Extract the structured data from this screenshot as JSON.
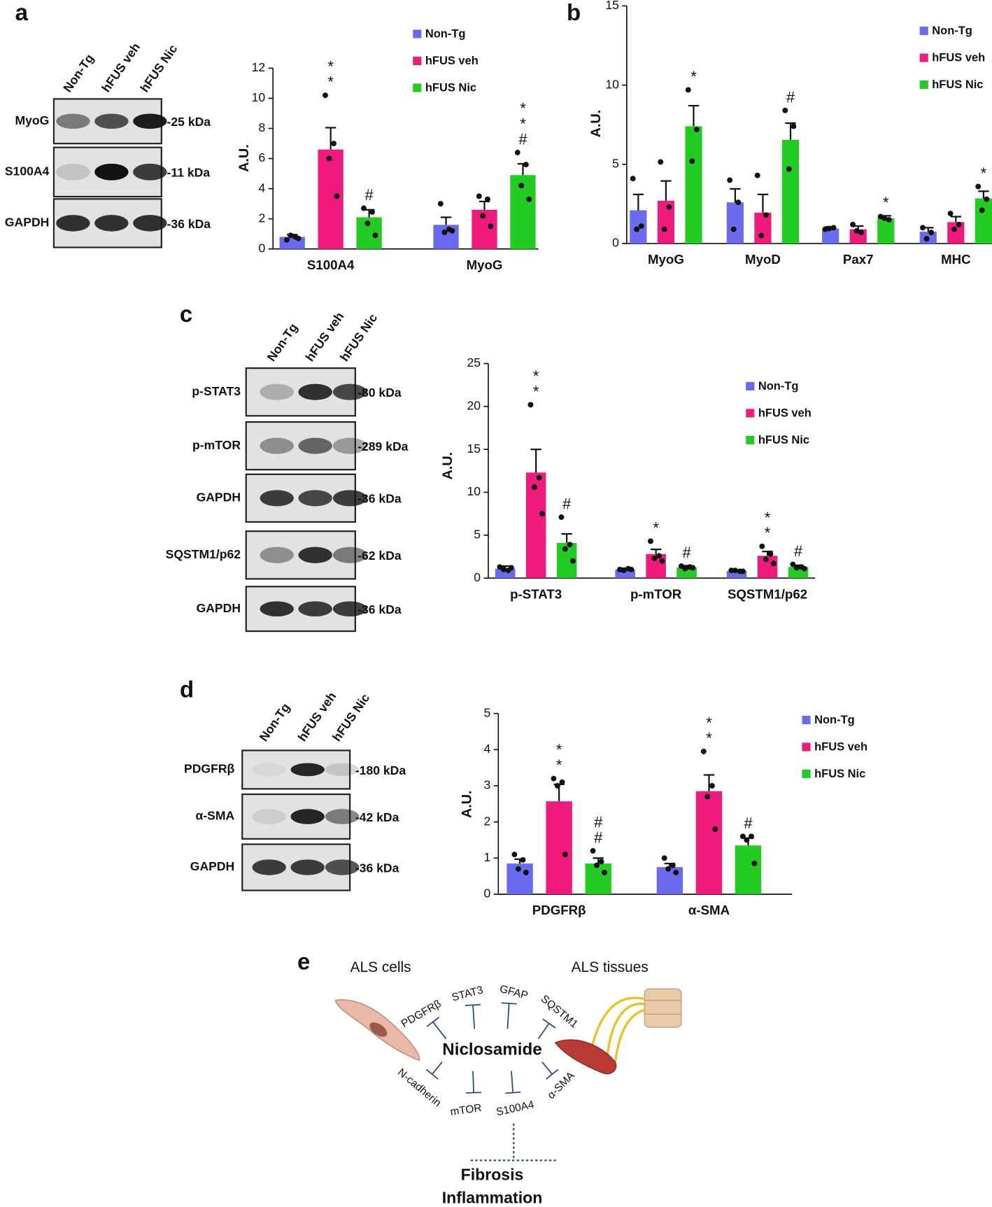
{
  "panels": [
    "a",
    "b",
    "c",
    "d",
    "e"
  ],
  "blots": [
    {
      "lanes": [
        "Non-Tg",
        "hFUS veh",
        "hFUS Nic"
      ],
      "rows": [
        {
          "label": "MyoG",
          "size": "-25 kDa"
        },
        {
          "label": "S100A4",
          "size": "-11 kDa"
        },
        {
          "label": "GAPDH",
          "size": "-36 kDa"
        }
      ]
    },
    {
      "lanes": [
        "Non-Tg",
        "hFUS veh",
        "hFUS Nic"
      ],
      "rows": [
        {
          "label": "p-STAT3",
          "size": "-80 kDa"
        },
        {
          "label": "p-mTOR",
          "size": "-289 kDa"
        },
        {
          "label": "GAPDH",
          "size": "-36 kDa"
        },
        {
          "label": "SQSTM1/p62",
          "size": "-62 kDa"
        },
        {
          "label": "GAPDH",
          "size": "-36 kDa"
        }
      ]
    },
    {
      "lanes": [
        "Non-Tg",
        "hFUS veh",
        "hFUS Nic"
      ],
      "rows": [
        {
          "label": "PDGFRβ",
          "size": "-180 kDa"
        },
        {
          "label": "α-SMA",
          "size": "-42 kDa"
        },
        {
          "label": "GAPDH",
          "size": "-36 kDa"
        }
      ]
    }
  ],
  "chart_data": [
    {
      "type": "bar",
      "y_label": "A.U.",
      "categories": [
        "S100A4",
        "MyoG"
      ],
      "ylim": [
        0,
        12
      ],
      "yticks": [
        0,
        2,
        4,
        6,
        8,
        10,
        12
      ],
      "legend": "upper right",
      "series": [
        {
          "name": "Non-Tg",
          "color": "#6a6aee",
          "values": [
            0.8,
            1.6
          ],
          "errors": [
            0.15,
            0.5
          ],
          "points": [
            [
              0.6,
              0.8,
              0.9,
              0.7
            ],
            [
              3.0,
              1.3,
              1.1,
              1.2
            ]
          ],
          "value_annotations": [
            null,
            null
          ]
        },
        {
          "name": "hFUS veh",
          "color": "#f01a7c",
          "values": [
            6.6,
            2.6
          ],
          "errors": [
            1.45,
            0.55
          ],
          "points": [
            [
              10.2,
              7.0,
              6.0,
              3.5
            ],
            [
              3.5,
              3.3,
              2.2,
              1.5
            ]
          ],
          "value_annotations": [
            "**",
            null
          ]
        },
        {
          "name": "hFUS Nic",
          "color": "#22cc22",
          "values": [
            2.1,
            4.9
          ],
          "errors": [
            0.5,
            0.75
          ],
          "points": [
            [
              2.7,
              2.45,
              1.7,
              0.9
            ],
            [
              6.4,
              5.6,
              4.2,
              3.3
            ]
          ],
          "value_annotations": [
            "#",
            "**#"
          ]
        }
      ]
    },
    {
      "type": "bar",
      "y_label": "A.U.",
      "categories": [
        "MyoG",
        "MyoD",
        "Pax7",
        "MHC"
      ],
      "ylim": [
        0,
        15
      ],
      "yticks": [
        0,
        5,
        10,
        15
      ],
      "legend": "upper right",
      "series": [
        {
          "name": "Non-Tg",
          "color": "#6a6aee",
          "values": [
            2.1,
            2.6,
            0.95,
            0.75
          ],
          "errors": [
            1.0,
            0.85,
            0.1,
            0.25
          ],
          "points": [
            [
              4.1,
              1.1,
              0.9
            ],
            [
              4.0,
              2.6,
              0.9
            ],
            [
              0.9,
              1.0,
              0.95
            ],
            [
              1.0,
              0.7,
              0.3
            ]
          ],
          "value_annotations": [
            null,
            null,
            null,
            null
          ]
        },
        {
          "name": "hFUS veh",
          "color": "#f01a7c",
          "values": [
            2.7,
            1.95,
            0.9,
            1.35
          ],
          "errors": [
            1.25,
            1.15,
            0.2,
            0.35
          ],
          "points": [
            [
              5.15,
              2.3,
              0.9
            ],
            [
              4.3,
              1.8,
              0.5
            ],
            [
              1.2,
              0.7,
              0.8
            ],
            [
              1.9,
              1.2,
              0.9
            ]
          ],
          "value_annotations": [
            null,
            null,
            null,
            null
          ]
        },
        {
          "name": "hFUS Nic",
          "color": "#22cc22",
          "values": [
            7.4,
            6.55,
            1.6,
            2.85
          ],
          "errors": [
            1.3,
            1.05,
            0.15,
            0.45
          ],
          "points": [
            [
              9.7,
              7.2,
              5.2
            ],
            [
              8.4,
              7.4,
              4.7
            ],
            [
              1.7,
              1.5,
              1.6
            ],
            [
              3.6,
              2.8,
              2.1
            ]
          ],
          "value_annotations": [
            "*",
            "#",
            "*",
            "*"
          ]
        }
      ]
    },
    {
      "type": "bar",
      "y_label": "A.U.",
      "categories": [
        "p-STAT3",
        "p-mTOR",
        "SQSTM1/p62"
      ],
      "ylim": [
        0,
        25
      ],
      "yticks": [
        0,
        5,
        10,
        15,
        20,
        25
      ],
      "legend": "upper right",
      "series": [
        {
          "name": "Non-Tg",
          "color": "#6a6aee",
          "values": [
            1.1,
            1.0,
            0.85
          ],
          "errors": [
            0.3,
            0.15,
            0.1
          ],
          "points": [
            [
              1.3,
              0.9,
              1.0,
              1.2
            ],
            [
              1.0,
              1.1,
              0.9,
              1.0
            ],
            [
              0.9,
              0.8,
              0.9,
              0.8
            ]
          ],
          "value_annotations": [
            null,
            null,
            null
          ]
        },
        {
          "name": "hFUS veh",
          "color": "#f01a7c",
          "values": [
            12.3,
            2.8,
            2.6
          ],
          "errors": [
            2.7,
            0.55,
            0.5
          ],
          "points": [
            [
              20.2,
              11.7,
              10.6,
              7.5
            ],
            [
              4.3,
              2.6,
              2.3,
              2.0
            ],
            [
              3.7,
              2.8,
              2.2,
              1.7
            ]
          ],
          "value_annotations": [
            "**",
            "*",
            "**"
          ]
        },
        {
          "name": "hFUS Nic",
          "color": "#22cc22",
          "values": [
            4.1,
            1.25,
            1.3
          ],
          "errors": [
            1.05,
            0.2,
            0.2
          ],
          "points": [
            [
              7.1,
              3.9,
              3.4,
              2.0
            ],
            [
              1.4,
              1.3,
              1.1,
              1.2
            ],
            [
              1.6,
              1.3,
              1.2,
              1.1
            ]
          ],
          "value_annotations": [
            "#",
            "#",
            "#"
          ]
        }
      ]
    },
    {
      "type": "bar",
      "y_label": "A.U.",
      "categories": [
        "PDGFRβ",
        "α-SMA"
      ],
      "ylim": [
        0,
        5
      ],
      "yticks": [
        0,
        1,
        2,
        3,
        4,
        5
      ],
      "legend": "upper right",
      "series": [
        {
          "name": "Non-Tg",
          "color": "#6a6aee",
          "values": [
            0.85,
            0.75
          ],
          "errors": [
            0.12,
            0.1
          ],
          "points": [
            [
              1.1,
              0.95,
              0.7,
              0.6
            ],
            [
              1.0,
              0.8,
              0.7,
              0.6
            ]
          ],
          "value_annotations": [
            null,
            null
          ]
        },
        {
          "name": "hFUS veh",
          "color": "#f01a7c",
          "values": [
            2.57,
            2.85
          ],
          "errors": [
            0.47,
            0.45
          ],
          "points": [
            [
              3.2,
              3.1,
              3.0,
              1.1
            ],
            [
              3.95,
              3.0,
              2.7,
              1.8
            ]
          ],
          "value_annotations": [
            "**",
            "**"
          ]
        },
        {
          "name": "hFUS Nic",
          "color": "#22cc22",
          "values": [
            0.85,
            1.35
          ],
          "errors": [
            0.15,
            0.2
          ],
          "points": [
            [
              1.2,
              0.9,
              0.8,
              0.6
            ],
            [
              1.6,
              1.6,
              1.5,
              0.85
            ]
          ],
          "value_annotations": [
            "##",
            "#"
          ]
        }
      ]
    }
  ],
  "diagram": {
    "left": "ALS cells",
    "right": "ALS tissues",
    "center": "Niclosamide",
    "targets": [
      "PDGFRβ",
      "STAT3",
      "GFAP",
      "SQSTM1",
      "N-cadherin",
      "mTOR",
      "S100A4",
      "α-SMA"
    ],
    "outcomes": [
      "Fibrosis",
      "Inflammation"
    ]
  }
}
